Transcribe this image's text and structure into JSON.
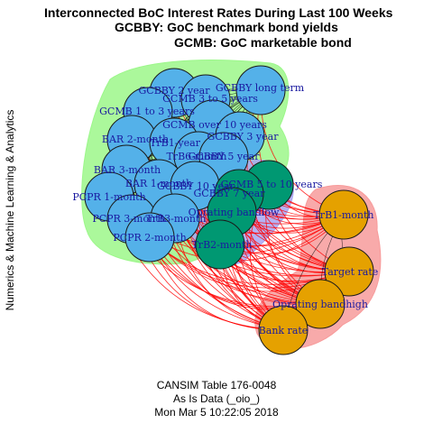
{
  "title": {
    "line1": "Interconnected BoC Interest Rates During Last 100 Weeks",
    "line2": "GCBBY: GoC benchmark bond yields",
    "line3": "GCMB: GoC marketable bond"
  },
  "side_label": "Numerics & Machine Learning & Analytics",
  "footer": {
    "line1": "CANSIM Table 176-0048",
    "line2": "As Is Data (_oio_)",
    "line3": "Mon Mar  5 10:22:05 2018"
  },
  "colors": {
    "cluster1_fill": "#54b1e9",
    "cluster2_fill": "#009872",
    "cluster3_fill": "#e5a100",
    "hull1": "#9cf78a",
    "hull2": "#a8a4f2",
    "hull3": "#f79b9b",
    "label": "#1a1aa0",
    "edge_between": "#ff0000"
  },
  "nodes": [
    {
      "id": "gcbby_2y",
      "label": "GCBBY 2 year",
      "group": 1
    },
    {
      "id": "gcbby_lt",
      "label": "GCBBY long term",
      "group": 1
    },
    {
      "id": "gcmb_3_5",
      "label": "GCMB 3 to 5 years",
      "group": 1
    },
    {
      "id": "gcmb_1_3",
      "label": "GCMB 1 to 3 years",
      "group": 1
    },
    {
      "id": "gcmb_10p",
      "label": "GCMB over 10 years",
      "group": 1
    },
    {
      "id": "gcbby_3y",
      "label": "GCBBY 3 year",
      "group": 1
    },
    {
      "id": "bar_2m",
      "label": "BAR 2-month",
      "group": 1
    },
    {
      "id": "trb1y",
      "label": "TrB1-year",
      "group": 1
    },
    {
      "id": "trb6m",
      "label": "TrB6-month",
      "group": 1
    },
    {
      "id": "gcbby_5y",
      "label": "GCBBY 5 year",
      "group": 1
    },
    {
      "id": "bar_3m",
      "label": "BAR 3-month",
      "group": 1
    },
    {
      "id": "bar_1m",
      "label": "BAR 1-month",
      "group": 1
    },
    {
      "id": "gcbby_10y",
      "label": "GCBBY 10 year",
      "group": 1
    },
    {
      "id": "pcpr_1m",
      "label": "PCPR 1-month",
      "group": 1
    },
    {
      "id": "pcpr_3m",
      "label": "PCPR 3-month",
      "group": 1
    },
    {
      "id": "trb3m",
      "label": "TrB3-month",
      "group": 1
    },
    {
      "id": "pcpr_2m",
      "label": "PCPR 2-month",
      "group": 1
    },
    {
      "id": "gcmb_5_10",
      "label": "GCMB 5 to 10 years",
      "group": 2
    },
    {
      "id": "gcbby_7y",
      "label": "GCBBY 7 year",
      "group": 2
    },
    {
      "id": "oper_band_low",
      "label": "Oprating bandlow",
      "group": 2
    },
    {
      "id": "trb2m",
      "label": "TrB2-month",
      "group": 2
    },
    {
      "id": "trb1m",
      "label": "TrB1-month",
      "group": 3
    },
    {
      "id": "target_rate",
      "label": "Target rate",
      "group": 3
    },
    {
      "id": "oper_band_high",
      "label": "Oprating bandhigh",
      "group": 3
    },
    {
      "id": "bank_rate",
      "label": "Bank rate",
      "group": 3
    }
  ]
}
